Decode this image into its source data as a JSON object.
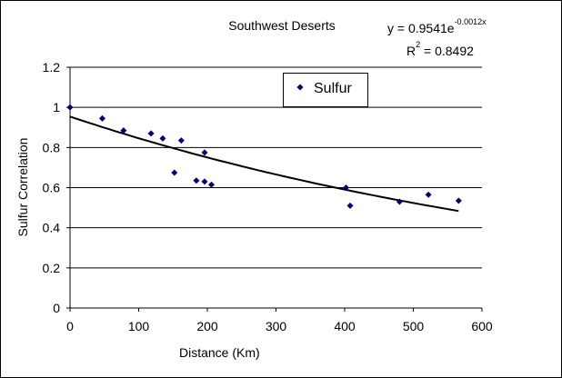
{
  "chart_data": {
    "type": "scatter",
    "title": "Southwest Deserts",
    "xlabel": "Distance (Km)",
    "ylabel": "Sulfur Correlation",
    "xlim": [
      0,
      600
    ],
    "ylim": [
      0,
      1.2
    ],
    "x_ticks": [
      "0",
      "100",
      "200",
      "300",
      "400",
      "500",
      "600"
    ],
    "y_ticks": [
      "0",
      "0.2",
      "0.4",
      "0.6",
      "0.8",
      "1",
      "1.2"
    ],
    "grid": "horizontal",
    "legend_position": "top-center",
    "series": [
      {
        "name": "Sulfur",
        "marker": "diamond",
        "color": "#00007f",
        "points": [
          {
            "x": 0,
            "y": 1.0
          },
          {
            "x": 47,
            "y": 0.945
          },
          {
            "x": 78,
            "y": 0.885
          },
          {
            "x": 118,
            "y": 0.87
          },
          {
            "x": 135,
            "y": 0.845
          },
          {
            "x": 162,
            "y": 0.835
          },
          {
            "x": 152,
            "y": 0.675
          },
          {
            "x": 184,
            "y": 0.635
          },
          {
            "x": 196,
            "y": 0.775
          },
          {
            "x": 196,
            "y": 0.63
          },
          {
            "x": 206,
            "y": 0.615
          },
          {
            "x": 402,
            "y": 0.6
          },
          {
            "x": 408,
            "y": 0.51
          },
          {
            "x": 480,
            "y": 0.53
          },
          {
            "x": 522,
            "y": 0.565
          },
          {
            "x": 566,
            "y": 0.535
          }
        ]
      }
    ],
    "trendline": {
      "type": "exponential",
      "a": 0.9541,
      "b": -0.0012,
      "x_range": [
        0,
        566
      ],
      "equation": {
        "prefix": "y = 0.9541e",
        "exponent": "-0.0012x"
      },
      "r_squared": {
        "prefix": "R",
        "exponent": "2",
        "suffix": " = 0.8492"
      }
    }
  }
}
